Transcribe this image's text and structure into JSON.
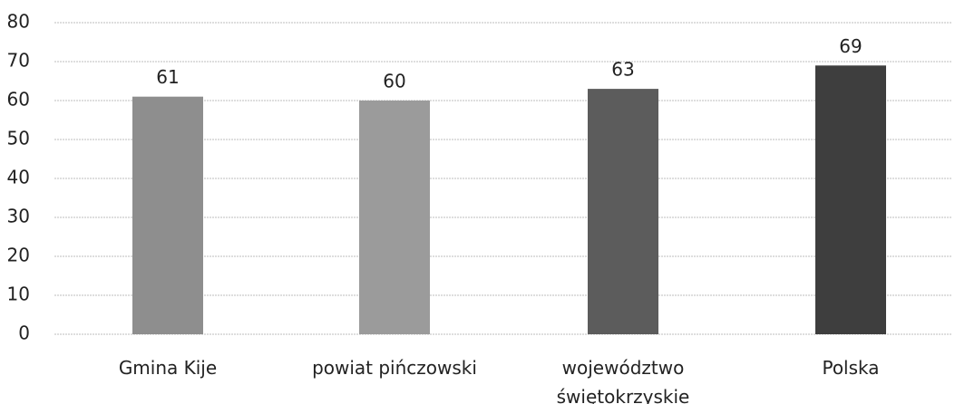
{
  "chart_data": {
    "type": "bar",
    "categories": [
      "Gmina Kije",
      "powiat pińczowski",
      "województwo świętokrzyskie",
      "Polska"
    ],
    "values": [
      61,
      60,
      63,
      69
    ],
    "colors": [
      "#8e8e8e",
      "#9b9b9b",
      "#5c5c5c",
      "#3e3e3e"
    ],
    "ylim": [
      0,
      80
    ],
    "yticks": [
      0,
      10,
      20,
      30,
      40,
      50,
      60,
      70,
      80
    ],
    "grid": true
  }
}
